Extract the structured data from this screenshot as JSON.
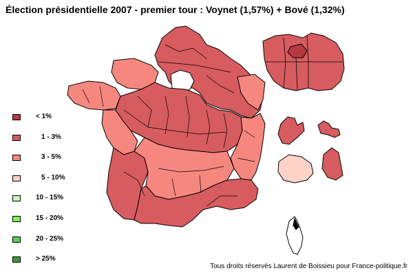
{
  "title": "Élection présidentielle 2007 - premier tour : Voynet (1,57%) + Bové (1,32%)",
  "credit": "Tous droits réservés Laurent de Boissieu pour France-politique.fr",
  "colors": {
    "lt1": "#b8393f",
    "r1_3": "#d75c5f",
    "r3_5": "#f6877f",
    "r5_10": "#fdd2c7",
    "r10_15": "#c7f5b6",
    "r15_20": "#79ef5a",
    "r20_25": "#57d14d",
    "gt25": "#3a9a3a",
    "border": "#000000",
    "paris_hole": "#ffffff"
  },
  "legend": [
    {
      "label": "< 1%",
      "color": "#b8393f"
    },
    {
      "label": "1 - 3%",
      "color": "#d75c5f"
    },
    {
      "label": "3 - 5%",
      "color": "#f6877f"
    },
    {
      "label": "5 - 10%",
      "color": "#fdd2c7"
    },
    {
      "label": "10 - 15%",
      "color": "#c7f5b6"
    },
    {
      "label": "15 - 20%",
      "color": "#79ef5a"
    },
    {
      "label": "20 - 25%",
      "color": "#57d14d"
    },
    {
      "label": "> 25%",
      "color": "#3a9a3a"
    }
  ]
}
